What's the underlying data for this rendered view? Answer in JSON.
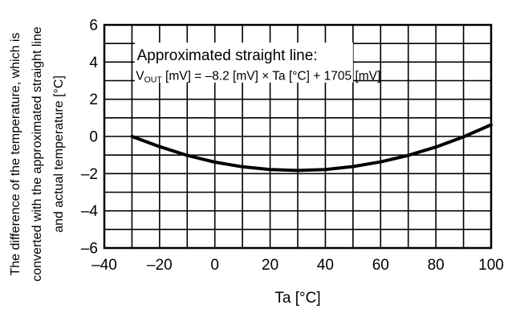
{
  "chart_data": {
    "type": "line",
    "title": "",
    "xlabel": "Ta [°C]",
    "ylabel_lines": [
      "The difference of the temperature, which is",
      "converted with the approximated straight line",
      "and actual temperature [°C]"
    ],
    "xlim": [
      -40,
      100
    ],
    "ylim": [
      -6,
      6
    ],
    "x_ticks": [
      -40,
      -20,
      0,
      20,
      40,
      60,
      80,
      100
    ],
    "x_tick_labels": [
      "–40",
      "–20",
      "0",
      "20",
      "40",
      "60",
      "80",
      "100"
    ],
    "y_ticks": [
      -6,
      -4,
      -2,
      0,
      2,
      4,
      6
    ],
    "y_tick_labels": [
      "–6",
      "–4",
      "–2",
      "0",
      "2",
      "4",
      "6"
    ],
    "grid": true,
    "annotation": {
      "line1": "Approximated straight line:",
      "line2_prefix": "V",
      "line2_sub": "OUT",
      "line2_suffix": " [mV] = –8.2 [mV] × Ta [°C] + 1705 [mV]"
    },
    "series": [
      {
        "x": [
          -30,
          -20,
          -10,
          0,
          10,
          20,
          30,
          40,
          50,
          60,
          70,
          80,
          90,
          100
        ],
        "y": [
          0.0,
          -0.55,
          -1.02,
          -1.38,
          -1.63,
          -1.78,
          -1.83,
          -1.78,
          -1.62,
          -1.37,
          -1.02,
          -0.57,
          -0.02,
          0.63
        ]
      }
    ]
  }
}
